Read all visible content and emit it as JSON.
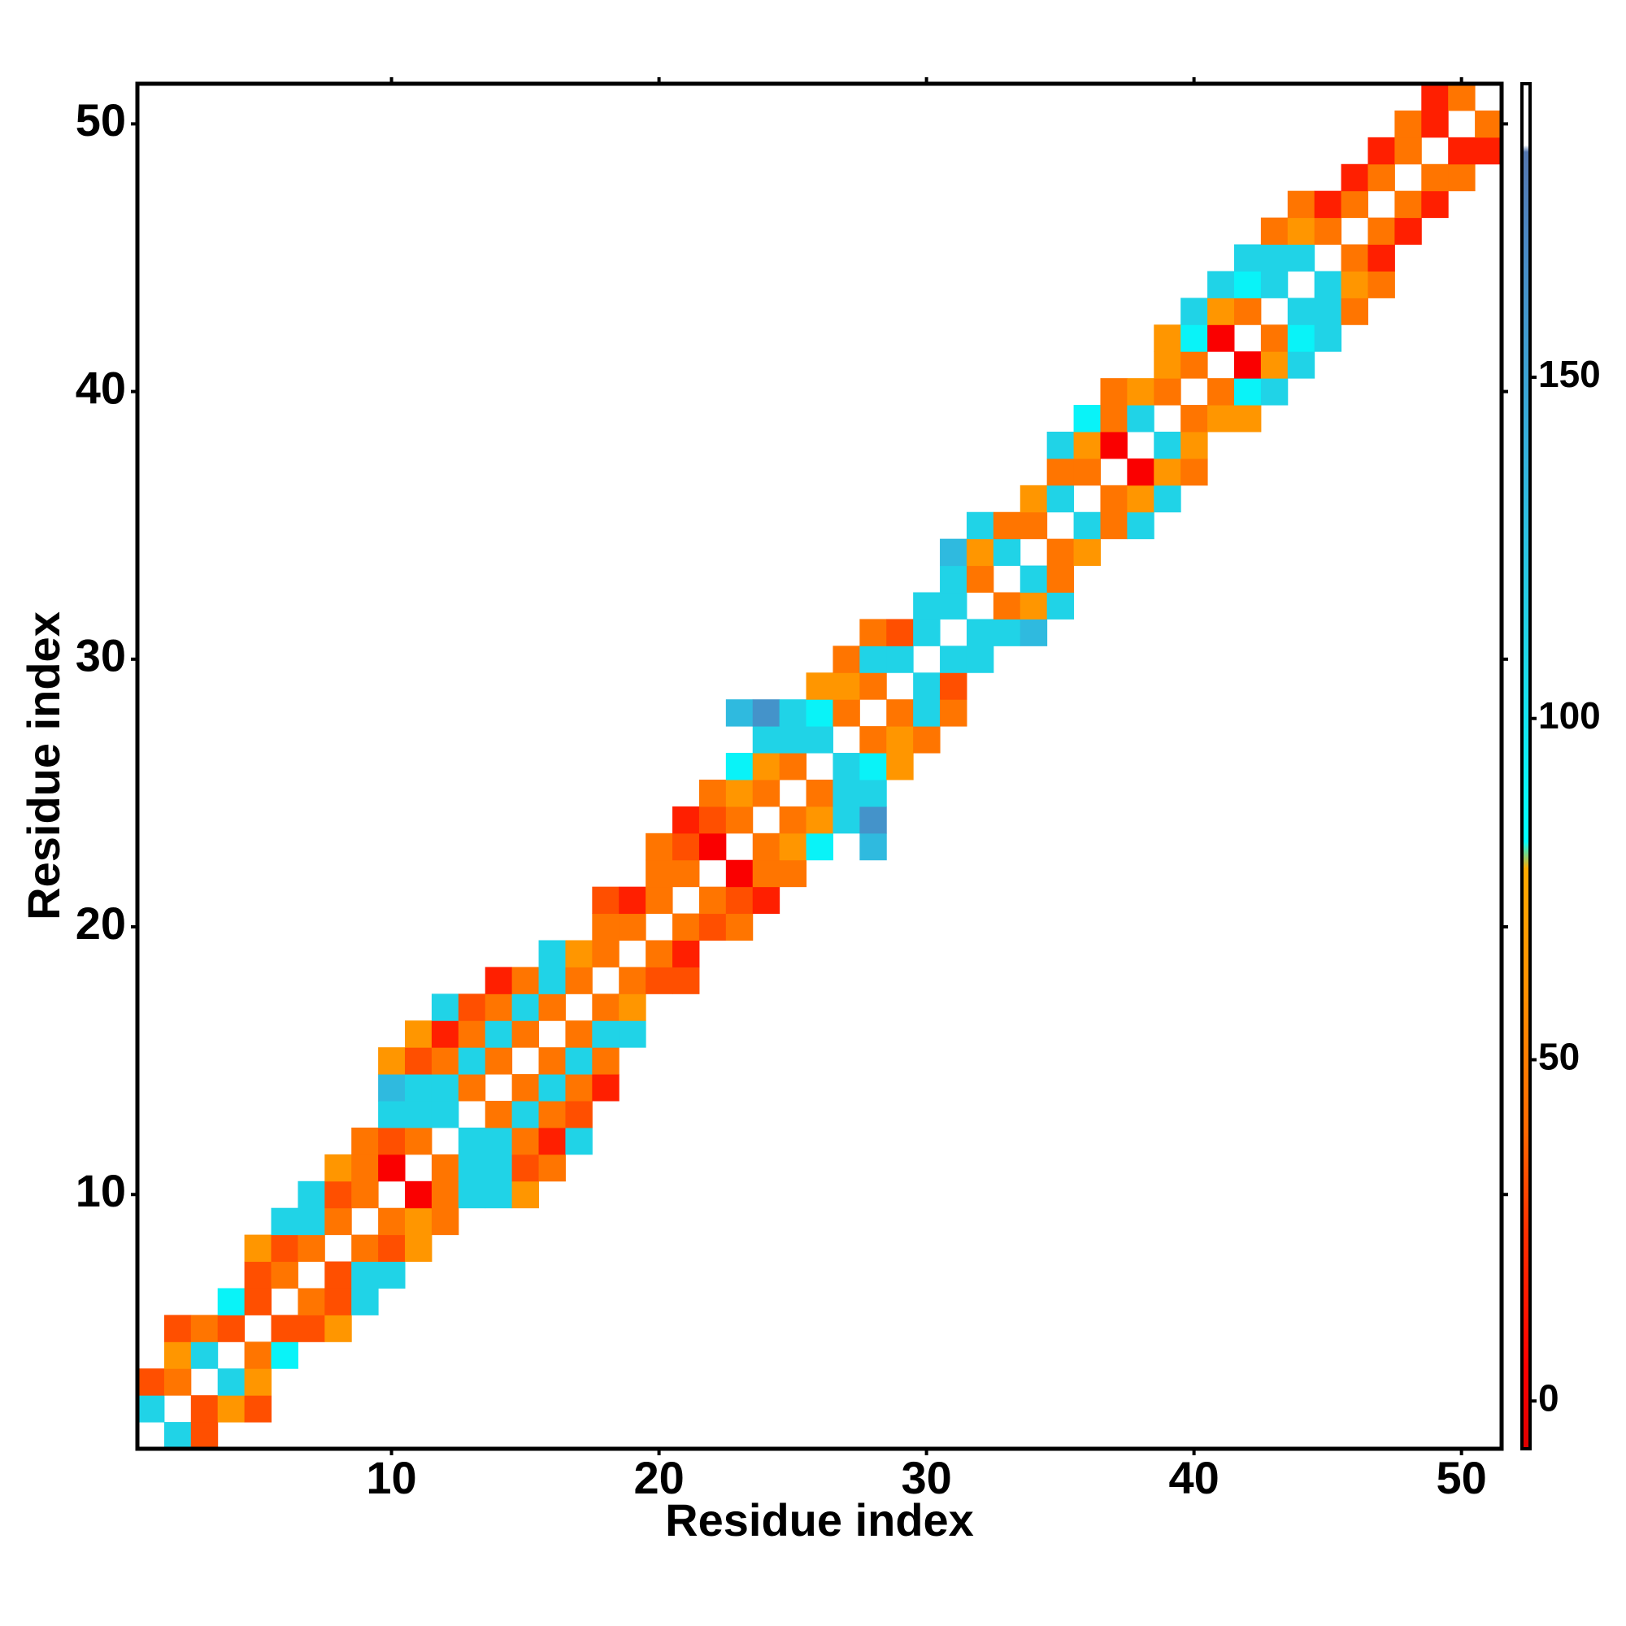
{
  "chart_data": {
    "type": "heatmap",
    "xlabel": "Residue index",
    "ylabel": "Residue index",
    "xlim": [
      0.5,
      51.5
    ],
    "ylim": [
      0.5,
      51.5
    ],
    "xticks": [
      10,
      20,
      30,
      40,
      50
    ],
    "yticks": [
      10,
      20,
      30,
      40,
      50
    ],
    "colorbar": {
      "lim": [
        -7,
        193
      ],
      "ticks": [
        0,
        50,
        100,
        150
      ]
    },
    "colorscale": [
      [
        -7,
        "#e00000"
      ],
      [
        5,
        "#ff0000"
      ],
      [
        25,
        "#ff3000"
      ],
      [
        40,
        "#ff6a00"
      ],
      [
        60,
        "#ff9000"
      ],
      [
        78,
        "#ffaa00"
      ],
      [
        82,
        "#00ffff"
      ],
      [
        110,
        "#1fd6e8"
      ],
      [
        140,
        "#35b0dc"
      ],
      [
        170,
        "#4a88c4"
      ],
      [
        183,
        "#5577b0"
      ],
      [
        184,
        "#ffffff"
      ],
      [
        193,
        "#ffffff"
      ]
    ],
    "cells": [
      [
        2,
        1,
        112
      ],
      [
        3,
        1,
        33
      ],
      [
        1,
        2,
        112
      ],
      [
        3,
        2,
        33
      ],
      [
        4,
        2,
        64
      ],
      [
        5,
        2,
        33
      ],
      [
        1,
        3,
        33
      ],
      [
        2,
        3,
        46
      ],
      [
        4,
        3,
        112
      ],
      [
        5,
        3,
        64
      ],
      [
        2,
        4,
        64
      ],
      [
        3,
        4,
        112
      ],
      [
        5,
        4,
        46
      ],
      [
        6,
        4,
        90
      ],
      [
        2,
        5,
        33
      ],
      [
        3,
        5,
        46
      ],
      [
        4,
        5,
        33
      ],
      [
        6,
        5,
        33
      ],
      [
        7,
        5,
        33
      ],
      [
        8,
        5,
        64
      ],
      [
        4,
        6,
        90
      ],
      [
        5,
        6,
        33
      ],
      [
        7,
        6,
        46
      ],
      [
        8,
        6,
        33
      ],
      [
        9,
        6,
        112
      ],
      [
        5,
        7,
        33
      ],
      [
        6,
        7,
        46
      ],
      [
        8,
        7,
        33
      ],
      [
        9,
        7,
        112
      ],
      [
        10,
        7,
        112
      ],
      [
        5,
        8,
        64
      ],
      [
        6,
        8,
        33
      ],
      [
        7,
        8,
        46
      ],
      [
        9,
        8,
        46
      ],
      [
        10,
        8,
        33
      ],
      [
        11,
        8,
        64
      ],
      [
        6,
        9,
        112
      ],
      [
        7,
        9,
        112
      ],
      [
        8,
        9,
        46
      ],
      [
        10,
        9,
        46
      ],
      [
        11,
        9,
        64
      ],
      [
        12,
        9,
        46
      ],
      [
        7,
        10,
        112
      ],
      [
        8,
        10,
        33
      ],
      [
        9,
        10,
        46
      ],
      [
        11,
        10,
        3
      ],
      [
        12,
        10,
        46
      ],
      [
        13,
        10,
        112
      ],
      [
        14,
        10,
        112
      ],
      [
        15,
        10,
        64
      ],
      [
        8,
        11,
        64
      ],
      [
        9,
        11,
        46
      ],
      [
        10,
        11,
        3
      ],
      [
        12,
        11,
        46
      ],
      [
        13,
        11,
        112
      ],
      [
        14,
        11,
        112
      ],
      [
        15,
        11,
        33
      ],
      [
        16,
        11,
        46
      ],
      [
        9,
        12,
        46
      ],
      [
        10,
        12,
        33
      ],
      [
        11,
        12,
        46
      ],
      [
        13,
        12,
        112
      ],
      [
        14,
        12,
        112
      ],
      [
        15,
        12,
        46
      ],
      [
        16,
        12,
        18
      ],
      [
        17,
        12,
        112
      ],
      [
        10,
        13,
        112
      ],
      [
        11,
        13,
        112
      ],
      [
        12,
        13,
        112
      ],
      [
        14,
        13,
        46
      ],
      [
        15,
        13,
        112
      ],
      [
        16,
        13,
        46
      ],
      [
        17,
        13,
        33
      ],
      [
        10,
        14,
        132
      ],
      [
        11,
        14,
        112
      ],
      [
        12,
        14,
        112
      ],
      [
        13,
        14,
        46
      ],
      [
        15,
        14,
        46
      ],
      [
        16,
        14,
        112
      ],
      [
        17,
        14,
        46
      ],
      [
        18,
        14,
        18
      ],
      [
        10,
        15,
        64
      ],
      [
        11,
        15,
        33
      ],
      [
        12,
        15,
        46
      ],
      [
        13,
        15,
        112
      ],
      [
        14,
        15,
        46
      ],
      [
        16,
        15,
        46
      ],
      [
        17,
        15,
        112
      ],
      [
        18,
        15,
        46
      ],
      [
        11,
        16,
        64
      ],
      [
        12,
        16,
        18
      ],
      [
        13,
        16,
        46
      ],
      [
        14,
        16,
        112
      ],
      [
        15,
        16,
        46
      ],
      [
        17,
        16,
        46
      ],
      [
        18,
        16,
        112
      ],
      [
        19,
        16,
        112
      ],
      [
        12,
        17,
        112
      ],
      [
        13,
        17,
        33
      ],
      [
        14,
        17,
        46
      ],
      [
        15,
        17,
        112
      ],
      [
        16,
        17,
        46
      ],
      [
        18,
        17,
        46
      ],
      [
        19,
        17,
        64
      ],
      [
        14,
        18,
        18
      ],
      [
        15,
        18,
        46
      ],
      [
        16,
        18,
        112
      ],
      [
        17,
        18,
        46
      ],
      [
        19,
        18,
        46
      ],
      [
        20,
        18,
        33
      ],
      [
        21,
        18,
        33
      ],
      [
        16,
        19,
        112
      ],
      [
        17,
        19,
        64
      ],
      [
        18,
        19,
        46
      ],
      [
        20,
        19,
        46
      ],
      [
        21,
        19,
        18
      ],
      [
        18,
        20,
        46
      ],
      [
        19,
        20,
        46
      ],
      [
        21,
        20,
        46
      ],
      [
        22,
        20,
        33
      ],
      [
        23,
        20,
        46
      ],
      [
        18,
        21,
        33
      ],
      [
        19,
        21,
        18
      ],
      [
        20,
        21,
        46
      ],
      [
        22,
        21,
        46
      ],
      [
        23,
        21,
        33
      ],
      [
        24,
        21,
        18
      ],
      [
        20,
        22,
        46
      ],
      [
        21,
        22,
        46
      ],
      [
        23,
        22,
        3
      ],
      [
        24,
        22,
        46
      ],
      [
        25,
        22,
        46
      ],
      [
        20,
        23,
        46
      ],
      [
        21,
        23,
        33
      ],
      [
        22,
        23,
        3
      ],
      [
        24,
        23,
        46
      ],
      [
        25,
        23,
        64
      ],
      [
        26,
        23,
        90
      ],
      [
        28,
        23,
        132
      ],
      [
        21,
        24,
        18
      ],
      [
        22,
        24,
        33
      ],
      [
        23,
        24,
        46
      ],
      [
        25,
        24,
        46
      ],
      [
        26,
        24,
        64
      ],
      [
        27,
        24,
        112
      ],
      [
        28,
        24,
        162
      ],
      [
        22,
        25,
        46
      ],
      [
        23,
        25,
        64
      ],
      [
        24,
        25,
        46
      ],
      [
        26,
        25,
        46
      ],
      [
        27,
        25,
        112
      ],
      [
        28,
        25,
        112
      ],
      [
        23,
        26,
        90
      ],
      [
        24,
        26,
        64
      ],
      [
        25,
        26,
        46
      ],
      [
        27,
        26,
        112
      ],
      [
        28,
        26,
        90
      ],
      [
        29,
        26,
        64
      ],
      [
        24,
        27,
        112
      ],
      [
        25,
        27,
        112
      ],
      [
        26,
        27,
        112
      ],
      [
        28,
        27,
        46
      ],
      [
        29,
        27,
        64
      ],
      [
        30,
        27,
        46
      ],
      [
        23,
        28,
        132
      ],
      [
        24,
        28,
        162
      ],
      [
        25,
        28,
        112
      ],
      [
        26,
        28,
        90
      ],
      [
        27,
        28,
        46
      ],
      [
        29,
        28,
        46
      ],
      [
        30,
        28,
        112
      ],
      [
        31,
        28,
        46
      ],
      [
        26,
        29,
        64
      ],
      [
        27,
        29,
        64
      ],
      [
        28,
        29,
        46
      ],
      [
        30,
        29,
        112
      ],
      [
        31,
        29,
        33
      ],
      [
        27,
        30,
        46
      ],
      [
        28,
        30,
        112
      ],
      [
        29,
        30,
        112
      ],
      [
        31,
        30,
        112
      ],
      [
        32,
        30,
        112
      ],
      [
        28,
        31,
        46
      ],
      [
        29,
        31,
        33
      ],
      [
        30,
        31,
        112
      ],
      [
        32,
        31,
        112
      ],
      [
        33,
        31,
        112
      ],
      [
        34,
        31,
        132
      ],
      [
        30,
        32,
        112
      ],
      [
        31,
        32,
        112
      ],
      [
        33,
        32,
        46
      ],
      [
        34,
        32,
        64
      ],
      [
        35,
        32,
        112
      ],
      [
        31,
        33,
        112
      ],
      [
        32,
        33,
        46
      ],
      [
        34,
        33,
        112
      ],
      [
        35,
        33,
        46
      ],
      [
        31,
        34,
        132
      ],
      [
        32,
        34,
        64
      ],
      [
        33,
        34,
        112
      ],
      [
        35,
        34,
        46
      ],
      [
        36,
        34,
        64
      ],
      [
        32,
        35,
        112
      ],
      [
        33,
        35,
        46
      ],
      [
        34,
        35,
        46
      ],
      [
        36,
        35,
        112
      ],
      [
        37,
        35,
        46
      ],
      [
        38,
        35,
        112
      ],
      [
        34,
        36,
        64
      ],
      [
        35,
        36,
        112
      ],
      [
        37,
        36,
        46
      ],
      [
        38,
        36,
        64
      ],
      [
        39,
        36,
        112
      ],
      [
        35,
        37,
        46
      ],
      [
        36,
        37,
        46
      ],
      [
        38,
        37,
        3
      ],
      [
        39,
        37,
        64
      ],
      [
        40,
        37,
        46
      ],
      [
        35,
        38,
        112
      ],
      [
        36,
        38,
        64
      ],
      [
        37,
        38,
        3
      ],
      [
        39,
        38,
        112
      ],
      [
        40,
        38,
        64
      ],
      [
        36,
        39,
        90
      ],
      [
        37,
        39,
        46
      ],
      [
        38,
        39,
        112
      ],
      [
        40,
        39,
        46
      ],
      [
        41,
        39,
        64
      ],
      [
        42,
        39,
        64
      ],
      [
        37,
        40,
        46
      ],
      [
        38,
        40,
        64
      ],
      [
        39,
        40,
        46
      ],
      [
        41,
        40,
        46
      ],
      [
        42,
        40,
        90
      ],
      [
        43,
        40,
        112
      ],
      [
        39,
        41,
        64
      ],
      [
        40,
        41,
        46
      ],
      [
        42,
        41,
        3
      ],
      [
        43,
        41,
        64
      ],
      [
        44,
        41,
        112
      ],
      [
        39,
        42,
        64
      ],
      [
        40,
        42,
        90
      ],
      [
        41,
        42,
        3
      ],
      [
        43,
        42,
        46
      ],
      [
        44,
        42,
        90
      ],
      [
        45,
        42,
        112
      ],
      [
        40,
        43,
        112
      ],
      [
        41,
        43,
        64
      ],
      [
        42,
        43,
        46
      ],
      [
        44,
        43,
        112
      ],
      [
        45,
        43,
        112
      ],
      [
        46,
        43,
        46
      ],
      [
        41,
        44,
        112
      ],
      [
        42,
        44,
        90
      ],
      [
        43,
        44,
        112
      ],
      [
        45,
        44,
        112
      ],
      [
        46,
        44,
        64
      ],
      [
        47,
        44,
        46
      ],
      [
        42,
        45,
        112
      ],
      [
        43,
        45,
        112
      ],
      [
        44,
        45,
        112
      ],
      [
        46,
        45,
        46
      ],
      [
        47,
        45,
        18
      ],
      [
        43,
        46,
        46
      ],
      [
        44,
        46,
        64
      ],
      [
        45,
        46,
        46
      ],
      [
        47,
        46,
        46
      ],
      [
        48,
        46,
        18
      ],
      [
        44,
        47,
        46
      ],
      [
        45,
        47,
        18
      ],
      [
        46,
        47,
        46
      ],
      [
        48,
        47,
        46
      ],
      [
        49,
        47,
        18
      ],
      [
        46,
        48,
        18
      ],
      [
        47,
        48,
        46
      ],
      [
        49,
        48,
        46
      ],
      [
        50,
        48,
        46
      ],
      [
        47,
        49,
        18
      ],
      [
        48,
        49,
        46
      ],
      [
        50,
        49,
        18
      ],
      [
        51,
        49,
        18
      ],
      [
        48,
        50,
        46
      ],
      [
        49,
        50,
        18
      ],
      [
        51,
        50,
        46
      ],
      [
        49,
        51,
        18
      ],
      [
        50,
        51,
        46
      ]
    ]
  }
}
